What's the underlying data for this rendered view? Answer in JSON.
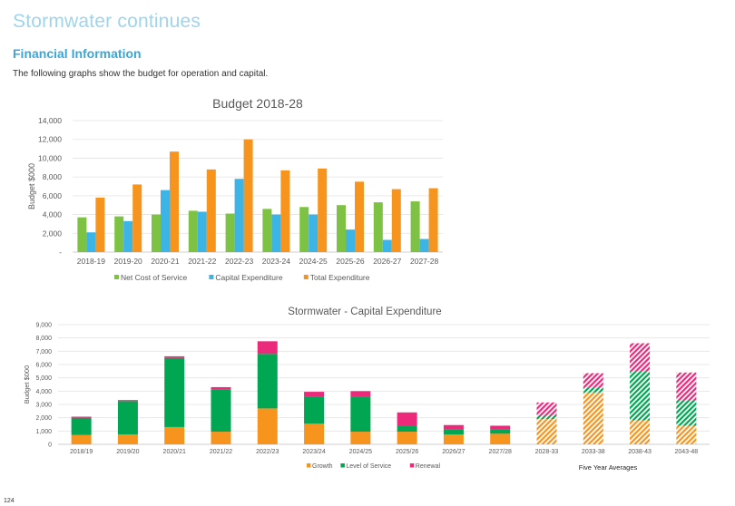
{
  "page": {
    "heading": "Stormwater continues",
    "section_title": "Financial Information",
    "intro": "The following graphs show the budget for operation and capital.",
    "page_number": "124"
  },
  "chart_data": [
    {
      "type": "bar",
      "title": "Budget 2018-28",
      "xlabel": "",
      "ylabel": "Budget $000",
      "ylim": [
        0,
        14000
      ],
      "yticks": [
        "-",
        "2,000",
        "4,000",
        "6,000",
        "8,000",
        "10,000",
        "12,000",
        "14,000"
      ],
      "grid": true,
      "legend_position": "bottom",
      "categories": [
        "2018-19",
        "2019-20",
        "2020-21",
        "2021-22",
        "2022-23",
        "2023-24",
        "2024-25",
        "2025-26",
        "2026-27",
        "2027-28"
      ],
      "series": [
        {
          "name": "Net Cost of Service",
          "color": "#7dc242",
          "values": [
            3700,
            3800,
            4000,
            4400,
            4100,
            4600,
            4800,
            5000,
            5300,
            5400
          ]
        },
        {
          "name": "Capital Expenditure",
          "color": "#3db4e6",
          "values": [
            2100,
            3300,
            6600,
            4300,
            7800,
            4000,
            4000,
            2400,
            1300,
            1400
          ]
        },
        {
          "name": "Total Expenditure",
          "color": "#f7941d",
          "values": [
            5800,
            7200,
            10700,
            8800,
            12000,
            8700,
            8900,
            7500,
            6700,
            6800
          ]
        }
      ]
    },
    {
      "type": "bar",
      "stacked": true,
      "title": "Stormwater - Capital Expenditure",
      "xlabel": "",
      "ylabel": "Budget $000",
      "ylim": [
        0,
        9000
      ],
      "yticks": [
        "0",
        "1,000",
        "2,000",
        "3,000",
        "4,000",
        "5,000",
        "6,000",
        "7,000",
        "8,000",
        "9,000"
      ],
      "grid": true,
      "legend_position": "bottom",
      "categories": [
        "2018/19",
        "2019/20",
        "2020/21",
        "2021/22",
        "2022/23",
        "2023/24",
        "2024/25",
        "2025/26",
        "2026/27",
        "2027/28",
        "2028-33",
        "2033-38",
        "2038-43",
        "2043-48"
      ],
      "hatched_from_index": 10,
      "group_label": "Five Year Averages",
      "series": [
        {
          "name": "Growth",
          "color": "#f7941d",
          "values": [
            700,
            750,
            1300,
            950,
            2700,
            1550,
            950,
            950,
            750,
            800,
            1900,
            3900,
            1800,
            1400
          ]
        },
        {
          "name": "Level of Service",
          "color": "#00a651",
          "values": [
            1300,
            2500,
            5200,
            3200,
            4100,
            2000,
            2600,
            450,
            400,
            350,
            250,
            350,
            3700,
            1900
          ]
        },
        {
          "name": "Renewal",
          "color": "#ec2a7b",
          "values": [
            80,
            80,
            120,
            150,
            950,
            400,
            450,
            1000,
            300,
            250,
            1000,
            1100,
            2100,
            2100
          ]
        }
      ]
    }
  ]
}
